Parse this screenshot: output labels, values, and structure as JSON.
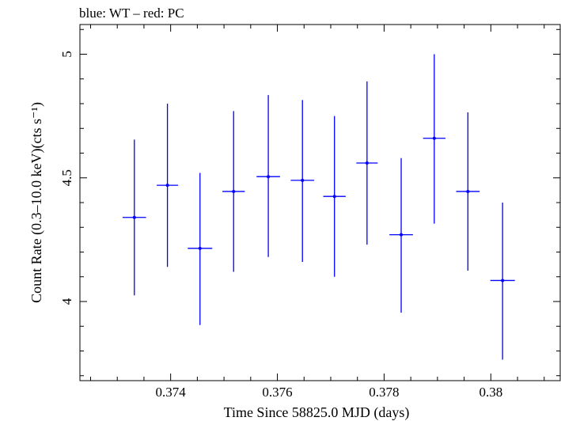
{
  "chart_data": {
    "type": "scatter",
    "title": "blue: WT – red: PC",
    "xlabel": "Time Since 58825.0 MJD (days)",
    "ylabel": "Count Rate (0.3–10.0 keV)(cts s⁻¹)",
    "xlim": [
      0.3723,
      0.3813
    ],
    "ylim": [
      3.68,
      5.12
    ],
    "xticks": [
      0.374,
      0.376,
      0.378,
      0.38
    ],
    "xtick_labels": [
      "0.374",
      "0.376",
      "0.378",
      "0.38"
    ],
    "yticks": [
      4,
      4.5,
      5
    ],
    "ytick_labels": [
      "4",
      "4.5",
      "5"
    ],
    "grid": false,
    "series": [
      {
        "color": "#0000ff",
        "points": [
          {
            "x": 0.37332,
            "y": 4.34,
            "xerr": 0.00022,
            "ylo": 4.025,
            "yhi": 4.655
          },
          {
            "x": 0.37394,
            "y": 4.47,
            "xerr": 0.0002,
            "ylo": 4.14,
            "yhi": 4.8
          },
          {
            "x": 0.37455,
            "y": 4.215,
            "xerr": 0.00023,
            "ylo": 3.905,
            "yhi": 4.52
          },
          {
            "x": 0.37518,
            "y": 4.445,
            "xerr": 0.00021,
            "ylo": 4.12,
            "yhi": 4.77
          },
          {
            "x": 0.37583,
            "y": 4.505,
            "xerr": 0.00022,
            "ylo": 4.18,
            "yhi": 4.835
          },
          {
            "x": 0.37647,
            "y": 4.49,
            "xerr": 0.00022,
            "ylo": 4.16,
            "yhi": 4.815
          },
          {
            "x": 0.37707,
            "y": 4.425,
            "xerr": 0.00021,
            "ylo": 4.1,
            "yhi": 4.75
          },
          {
            "x": 0.37768,
            "y": 4.56,
            "xerr": 0.0002,
            "ylo": 4.23,
            "yhi": 4.89
          },
          {
            "x": 0.37832,
            "y": 4.27,
            "xerr": 0.00022,
            "ylo": 3.955,
            "yhi": 4.58
          },
          {
            "x": 0.37894,
            "y": 4.66,
            "xerr": 0.00021,
            "ylo": 4.315,
            "yhi": 5.0
          },
          {
            "x": 0.37957,
            "y": 4.445,
            "xerr": 0.00022,
            "ylo": 4.125,
            "yhi": 4.765
          },
          {
            "x": 0.38022,
            "y": 4.085,
            "xerr": 0.00023,
            "ylo": 3.765,
            "yhi": 4.4
          }
        ]
      }
    ]
  }
}
